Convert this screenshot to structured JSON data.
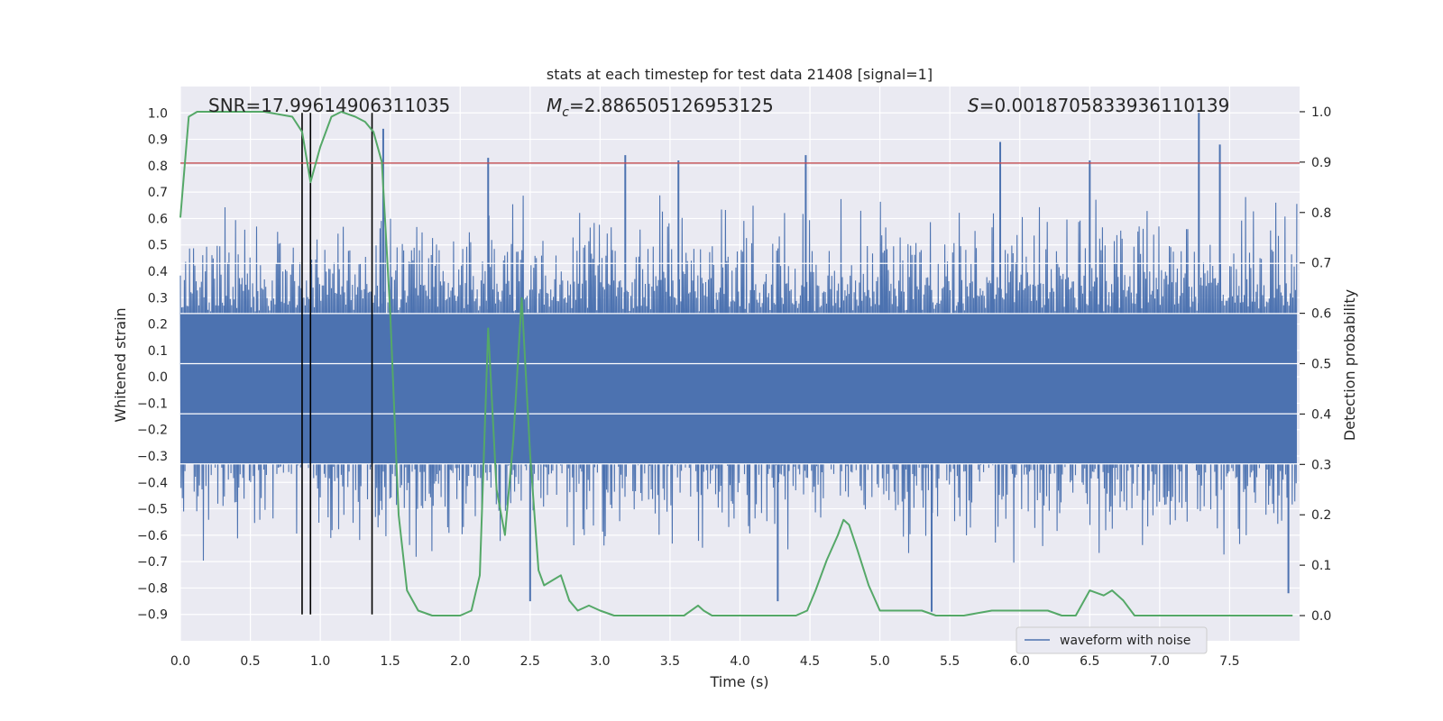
{
  "chart_data": {
    "type": "line",
    "title": "stats at each timestep for test data 21408 [signal=1]",
    "xlabel": "Time (s)",
    "ylabel_left": "Whitened strain",
    "ylabel_right": "Detection probability",
    "xlim": [
      0.0,
      8.0
    ],
    "ylim_left": [
      -1.0,
      1.1
    ],
    "ylim_right": [
      -0.05,
      1.05
    ],
    "xticks": [
      0.0,
      0.5,
      1.0,
      1.5,
      2.0,
      2.5,
      3.0,
      3.5,
      4.0,
      4.5,
      5.0,
      5.5,
      6.0,
      6.5,
      7.0,
      7.5
    ],
    "xtick_labels": [
      "0.0",
      "0.5",
      "1.0",
      "1.5",
      "2.0",
      "2.5",
      "3.0",
      "3.5",
      "4.0",
      "4.5",
      "5.0",
      "5.5",
      "6.0",
      "6.5",
      "7.0",
      "7.5"
    ],
    "yticks_left": [
      1.0,
      0.9,
      0.8,
      0.7,
      0.6,
      0.5,
      0.4,
      0.3,
      0.2,
      0.1,
      0.0,
      -0.1,
      -0.2,
      -0.3,
      -0.4,
      -0.5,
      -0.6,
      -0.7,
      -0.8,
      -0.9
    ],
    "ytick_labels_left": [
      "1.0",
      "0.9",
      "0.8",
      "0.7",
      "0.6",
      "0.5",
      "0.4",
      "0.3",
      "0.2",
      "0.1",
      "0.0",
      "−0.1",
      "−0.2",
      "−0.3",
      "−0.4",
      "−0.5",
      "−0.6",
      "−0.7",
      "−0.8",
      "−0.9"
    ],
    "yticks_right": [
      1.0,
      0.9,
      0.8,
      0.7,
      0.6,
      0.5,
      0.4,
      0.3,
      0.2,
      0.1,
      0.0
    ],
    "ytick_labels_right": [
      "1.0",
      "0.9",
      "0.8",
      "0.7",
      "0.6",
      "0.5",
      "0.4",
      "0.3",
      "0.2",
      "0.1",
      "0.0"
    ],
    "annotations": {
      "snr": "SNR=17.99614906311035",
      "mc_symbol": "M",
      "mc_sub": "c",
      "mc_value": "=2.886505126953125",
      "s_symbol": "S",
      "s_value": "=0.0018705833936110139"
    },
    "threshold_line": {
      "y": 0.81,
      "color": "#c44e52"
    },
    "vertical_markers_x": [
      0.87,
      0.93,
      1.37
    ],
    "vertical_marker_range": [
      -0.9,
      1.0
    ],
    "legend": {
      "label": "waveform with noise",
      "location": "lower-right"
    },
    "series": [
      {
        "name": "waveform with noise",
        "axis": "left",
        "color": "#4c72b0",
        "description": "dense whitened strain time series, amplitude roughly within -0.6 to 0.6 with spikes",
        "notable_peaks": [
          {
            "x": 1.45,
            "y": 0.94
          },
          {
            "x": 2.2,
            "y": 0.83
          },
          {
            "x": 3.18,
            "y": 0.84
          },
          {
            "x": 3.56,
            "y": 0.82
          },
          {
            "x": 4.47,
            "y": 0.84
          },
          {
            "x": 5.86,
            "y": 0.89
          },
          {
            "x": 6.5,
            "y": 0.82
          },
          {
            "x": 7.28,
            "y": 1.0
          },
          {
            "x": 7.43,
            "y": 0.88
          }
        ],
        "notable_troughs": [
          {
            "x": 2.5,
            "y": -0.85
          },
          {
            "x": 4.27,
            "y": -0.85
          },
          {
            "x": 5.37,
            "y": -0.89
          },
          {
            "x": 7.92,
            "y": -0.82
          }
        ]
      },
      {
        "name": "detection probability",
        "axis": "right",
        "color": "#55a868",
        "x": [
          0.0,
          0.06,
          0.12,
          0.2,
          0.4,
          0.6,
          0.8,
          0.87,
          0.93,
          1.0,
          1.08,
          1.15,
          1.25,
          1.32,
          1.38,
          1.44,
          1.5,
          1.56,
          1.62,
          1.7,
          1.8,
          2.0,
          2.08,
          2.14,
          2.2,
          2.26,
          2.32,
          2.38,
          2.44,
          2.5,
          2.56,
          2.6,
          2.66,
          2.72,
          2.78,
          2.84,
          2.92,
          3.0,
          3.1,
          3.3,
          3.6,
          3.7,
          3.74,
          3.8,
          3.88,
          4.1,
          4.4,
          4.48,
          4.54,
          4.62,
          4.7,
          4.74,
          4.78,
          4.84,
          4.92,
          5.0,
          5.1,
          5.2,
          5.3,
          5.4,
          5.6,
          5.8,
          5.9,
          6.0,
          6.12,
          6.2,
          6.3,
          6.4,
          6.5,
          6.6,
          6.66,
          6.74,
          6.82,
          7.0,
          7.5,
          7.95
        ],
        "y": [
          0.79,
          0.99,
          1.0,
          1.0,
          1.0,
          1.0,
          0.99,
          0.96,
          0.86,
          0.93,
          0.99,
          1.0,
          0.99,
          0.98,
          0.96,
          0.9,
          0.6,
          0.2,
          0.05,
          0.01,
          0.0,
          0.0,
          0.01,
          0.08,
          0.57,
          0.25,
          0.16,
          0.35,
          0.63,
          0.32,
          0.09,
          0.06,
          0.07,
          0.08,
          0.03,
          0.01,
          0.02,
          0.01,
          0.0,
          0.0,
          0.0,
          0.02,
          0.01,
          0.0,
          0.0,
          0.0,
          0.0,
          0.01,
          0.05,
          0.11,
          0.16,
          0.19,
          0.18,
          0.13,
          0.06,
          0.01,
          0.01,
          0.01,
          0.01,
          0.0,
          0.0,
          0.01,
          0.01,
          0.01,
          0.01,
          0.01,
          0.0,
          0.0,
          0.05,
          0.04,
          0.05,
          0.03,
          0.0,
          0.0,
          0.0,
          0.0
        ]
      }
    ]
  }
}
